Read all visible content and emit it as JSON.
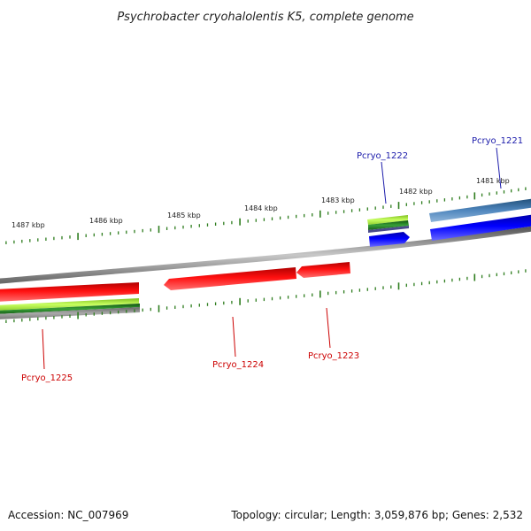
{
  "title": "Psychrobacter cryohalolentis K5, complete genome",
  "footer": {
    "accession": "Accession: NC_007969",
    "summary": "Topology: circular; Length: 3,059,876 bp; Genes: 2,532"
  },
  "colors": {
    "backbone": "#8a8a8a",
    "forward_cds": "#0000ee",
    "forward_gene": "#3a6ea5",
    "reverse_cds": "#ee0000",
    "rna_light": "#b8ee50",
    "rna_dark": "#2e8b2e",
    "reverse_gene": "#999999",
    "tick": "#2e7d1e",
    "forward_label": "#1a1aaa",
    "reverse_label": "#cc0000"
  },
  "kbp_labels": [
    "1487 kbp",
    "1486 kbp",
    "1485 kbp",
    "1484 kbp",
    "1483 kbp",
    "1482 kbp",
    "1481 kbp"
  ],
  "gene_labels": {
    "forward": [
      "Pcryo_1222",
      "Pcryo_1221"
    ],
    "reverse": [
      "Pcryo_1225",
      "Pcryo_1224",
      "Pcryo_1223"
    ]
  }
}
